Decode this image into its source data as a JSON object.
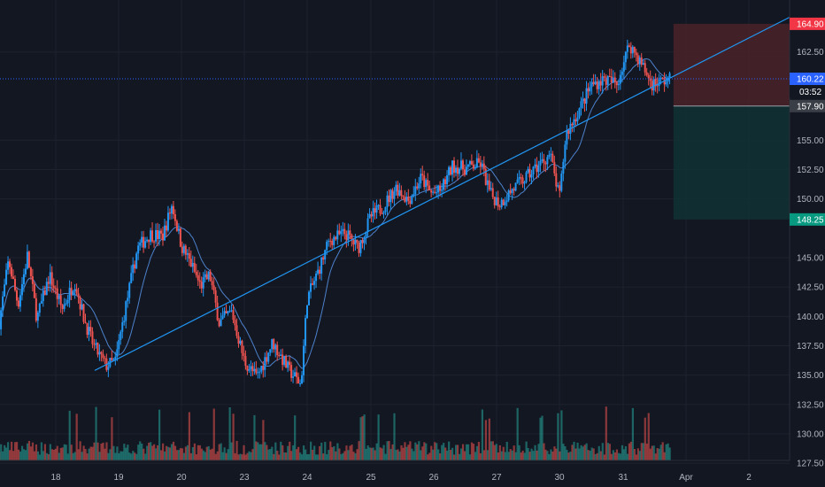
{
  "chart_data": {
    "type": "candlestick",
    "title": "",
    "xlabel": "",
    "ylabel": "",
    "ylim": [
      127.0,
      167.3
    ],
    "y_ticks": [
      {
        "value": 162.5,
        "label": "162.50"
      },
      {
        "value": 155.0,
        "label": "155.00"
      },
      {
        "value": 152.5,
        "label": "152.50"
      },
      {
        "value": 150.0,
        "label": "150.00"
      },
      {
        "value": 145.0,
        "label": "145.00"
      },
      {
        "value": 142.5,
        "label": "142.50"
      },
      {
        "value": 140.0,
        "label": "140.00"
      },
      {
        "value": 137.5,
        "label": "137.50"
      },
      {
        "value": 135.0,
        "label": "135.00"
      },
      {
        "value": 132.5,
        "label": "132.50"
      },
      {
        "value": 130.0,
        "label": "130.00"
      },
      {
        "value": 127.5,
        "label": "127.50"
      }
    ],
    "x_ticks": [
      {
        "label": "18",
        "slot": 0
      },
      {
        "label": "19",
        "slot": 1
      },
      {
        "label": "20",
        "slot": 2
      },
      {
        "label": "23",
        "slot": 3
      },
      {
        "label": "24",
        "slot": 4
      },
      {
        "label": "25",
        "slot": 5
      },
      {
        "label": "26",
        "slot": 6
      },
      {
        "label": "27",
        "slot": 7
      },
      {
        "label": "30",
        "slot": 8
      },
      {
        "label": "31",
        "slot": 9
      },
      {
        "label": "Apr",
        "slot": 10
      },
      {
        "label": "2",
        "slot": 11
      }
    ],
    "price_labels": [
      {
        "name": "target-price-label",
        "value": 164.9,
        "label": "164.90",
        "color": "#f23645"
      },
      {
        "name": "current-price-label",
        "value": 160.22,
        "label": "160.22",
        "color": "#2962ff"
      },
      {
        "name": "stop-price-label",
        "value": 148.25,
        "label": "148.25",
        "color": "#089981"
      }
    ],
    "countdown": "03:52",
    "entry_price": {
      "value": 157.9,
      "label": "157.90"
    },
    "position": {
      "entry": 157.9,
      "target": 164.9,
      "stop": 148.25,
      "start_slot": 9.8
    },
    "trendline": {
      "x": [
        0.62,
        11.7
      ],
      "y": [
        135.4,
        165.6
      ],
      "color": "#2196f3"
    },
    "colors": {
      "up": "#2196f3",
      "down": "#ef5350",
      "vol_up": "#26a69a",
      "vol_down": "#ef5350",
      "grid": "#1e222d",
      "ma": "#5b9cf6",
      "target_zone": "#4a2228",
      "stop_zone": "#113133"
    },
    "series": [
      {
        "name": "",
        "waypoints": [
          [
            -0.9,
            139.5
          ],
          [
            -0.75,
            144.8
          ],
          [
            -0.6,
            141.0
          ],
          [
            -0.45,
            145.2
          ],
          [
            -0.3,
            139.8
          ],
          [
            -0.1,
            143.5
          ],
          [
            0.1,
            140.6
          ],
          [
            0.3,
            143.0
          ],
          [
            0.45,
            139.8
          ],
          [
            0.6,
            137.5
          ],
          [
            0.8,
            135.8
          ],
          [
            0.95,
            136.2
          ],
          [
            1.1,
            140.5
          ],
          [
            1.3,
            145.8
          ],
          [
            1.5,
            147.0
          ],
          [
            1.7,
            146.8
          ],
          [
            1.85,
            149.5
          ],
          [
            2.0,
            146.0
          ],
          [
            2.15,
            144.5
          ],
          [
            2.3,
            142.6
          ],
          [
            2.45,
            143.5
          ],
          [
            2.6,
            139.5
          ],
          [
            2.8,
            140.4
          ],
          [
            3.0,
            136.2
          ],
          [
            3.2,
            134.8
          ],
          [
            3.45,
            137.8
          ],
          [
            3.7,
            135.5
          ],
          [
            3.9,
            134.2
          ],
          [
            4.0,
            141.5
          ],
          [
            4.15,
            143.5
          ],
          [
            4.35,
            146.5
          ],
          [
            4.6,
            147.1
          ],
          [
            4.8,
            145.8
          ],
          [
            5.0,
            148.5
          ],
          [
            5.2,
            149.4
          ],
          [
            5.4,
            151.0
          ],
          [
            5.6,
            149.9
          ],
          [
            5.8,
            151.8
          ],
          [
            5.95,
            150.5
          ],
          [
            6.1,
            150.6
          ],
          [
            6.3,
            152.8
          ],
          [
            6.5,
            152.6
          ],
          [
            6.75,
            153.0
          ],
          [
            6.9,
            150.4
          ],
          [
            7.05,
            149.6
          ],
          [
            7.25,
            150.8
          ],
          [
            7.45,
            151.7
          ],
          [
            7.6,
            152.5
          ],
          [
            7.85,
            153.8
          ],
          [
            8.0,
            150.0
          ],
          [
            8.1,
            155.5
          ],
          [
            8.3,
            157.5
          ],
          [
            8.5,
            159.7
          ],
          [
            8.7,
            160.2
          ],
          [
            8.9,
            159.8
          ],
          [
            9.1,
            163.2
          ],
          [
            9.3,
            161.4
          ],
          [
            9.45,
            159.8
          ],
          [
            9.6,
            160.0
          ],
          [
            9.75,
            160.2
          ]
        ]
      }
    ]
  }
}
